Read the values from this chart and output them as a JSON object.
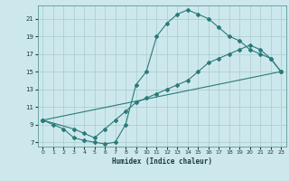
{
  "xlabel": "Humidex (Indice chaleur)",
  "xlim": [
    -0.5,
    23.5
  ],
  "ylim": [
    6.5,
    22.5
  ],
  "yticks": [
    7,
    9,
    11,
    13,
    15,
    17,
    19,
    21
  ],
  "xticks": [
    0,
    1,
    2,
    3,
    4,
    5,
    6,
    7,
    8,
    9,
    10,
    11,
    12,
    13,
    14,
    15,
    16,
    17,
    18,
    19,
    20,
    21,
    22,
    23
  ],
  "bg_color": "#cde8ec",
  "grid_color": "#afd0d4",
  "line_color": "#2a7a7a",
  "line1_x": [
    0,
    1,
    2,
    3,
    4,
    5,
    6,
    7,
    8,
    9,
    10,
    11,
    12,
    13,
    14,
    15,
    16,
    17,
    18,
    19,
    20,
    21,
    22,
    23
  ],
  "line1_y": [
    9.5,
    9.0,
    8.5,
    7.5,
    7.2,
    7.0,
    6.8,
    7.0,
    9.0,
    13.5,
    15.0,
    19.0,
    20.5,
    21.5,
    22.0,
    21.5,
    21.0,
    20.0,
    19.0,
    18.5,
    17.5,
    17.0,
    16.5,
    15.0
  ],
  "line2_x": [
    0,
    3,
    4,
    5,
    6,
    7,
    8,
    9,
    10,
    11,
    12,
    13,
    14,
    15,
    16,
    17,
    18,
    19,
    20,
    21,
    22,
    23
  ],
  "line2_y": [
    9.5,
    8.5,
    8.0,
    7.5,
    8.5,
    9.5,
    10.5,
    11.5,
    12.0,
    12.5,
    13.0,
    13.5,
    14.0,
    15.0,
    16.0,
    16.5,
    17.0,
    17.5,
    18.0,
    17.5,
    16.5,
    15.0
  ],
  "line3_x": [
    0,
    23
  ],
  "line3_y": [
    9.5,
    15.0
  ]
}
